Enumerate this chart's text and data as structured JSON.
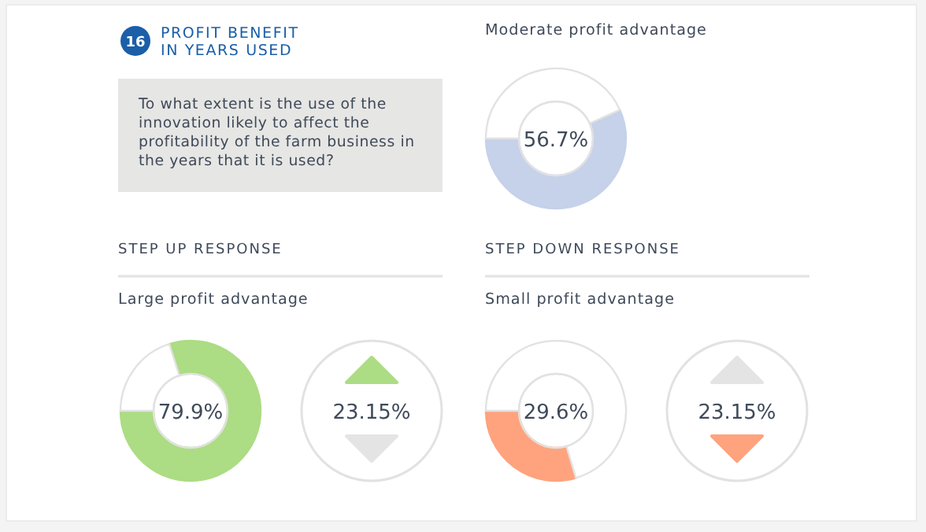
{
  "chart_data": [
    {
      "type": "other",
      "title": "PROFIT BENEFIT IN YEARS USED",
      "annotations": [
        "16",
        "To what extent is the use of the innovation likely to affect the profitability of the farm business in the years that it is used?",
        "STEP UP RESPONSE",
        "STEP DOWN RESPONSE"
      ]
    },
    {
      "type": "donut",
      "title": "Moderate profit advantage",
      "categories": [
        null,
        null
      ],
      "values": [
        56.7,
        43.3
      ],
      "colors": [
        "#c6d1ea",
        "#ffffff"
      ],
      "value_labels": [
        "56.7%",
        null
      ]
    },
    {
      "type": "donut",
      "title": "Large profit advantage",
      "categories": [
        null,
        null
      ],
      "values": [
        79.9,
        20.1
      ],
      "colors": [
        "#acdc84",
        "#ffffff"
      ],
      "value_labels": [
        "79.9%",
        null
      ]
    },
    {
      "type": "other",
      "annotations": [
        "23.15%"
      ],
      "colors": [
        "#acdc84",
        "#e4e4e4"
      ]
    },
    {
      "type": "donut",
      "title": "Small profit advantage",
      "categories": [
        null,
        null
      ],
      "values": [
        29.6,
        70.4
      ],
      "colors": [
        "#fea37e",
        "#ffffff"
      ],
      "value_labels": [
        "29.6%",
        null
      ]
    },
    {
      "type": "other",
      "annotations": [
        "23.15%"
      ],
      "colors": [
        "#e4e4e4",
        "#fea37e"
      ]
    }
  ]
}
